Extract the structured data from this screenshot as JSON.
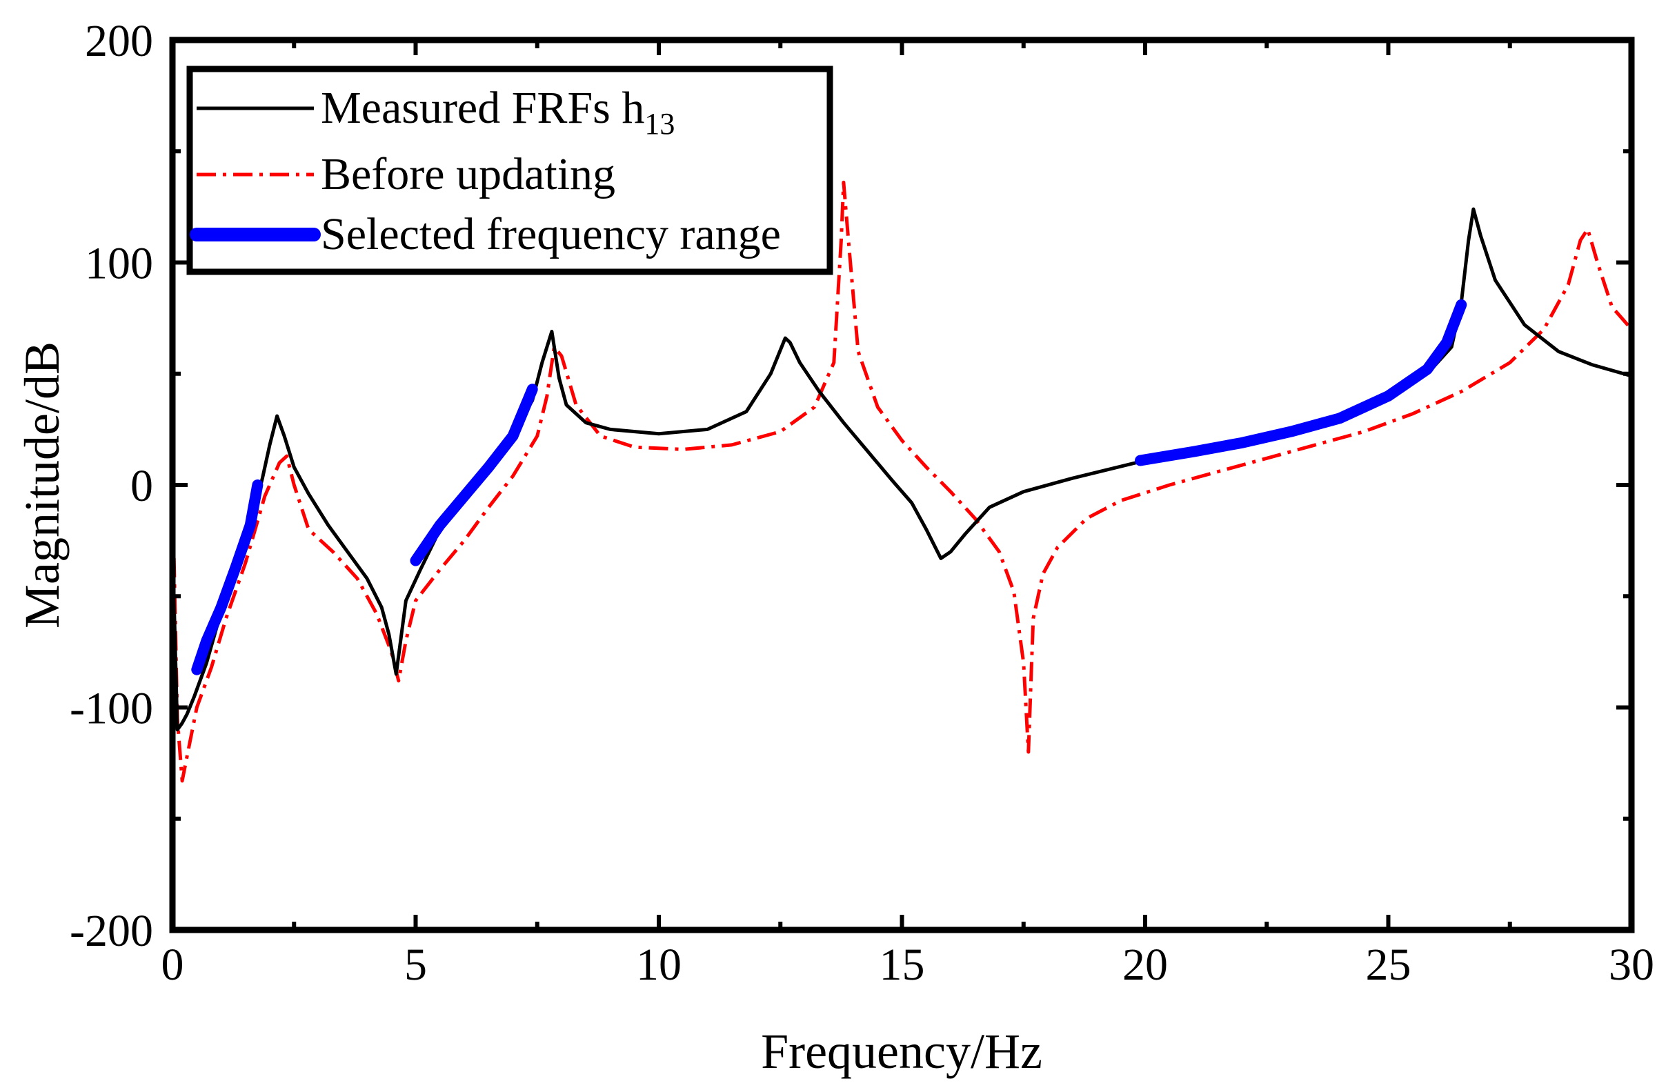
{
  "chart_data": {
    "type": "line",
    "title": "",
    "xlabel": "Frequency/Hz",
    "ylabel": "Magnitude/dB",
    "xlim": [
      0,
      30
    ],
    "ylim": [
      -200,
      200
    ],
    "xticks": [
      0,
      5,
      10,
      15,
      20,
      25,
      30
    ],
    "xtick_labels": [
      "0",
      "5",
      "10",
      "15",
      "20",
      "25",
      "30"
    ],
    "yticks": [
      -200,
      -100,
      0,
      100,
      200
    ],
    "ytick_labels": [
      "-200",
      "-100",
      "0",
      "100",
      "200"
    ],
    "grid": false,
    "legend_position": "top-left",
    "legend": {
      "measured": {
        "label": "Measured FRFs h",
        "subscript": "13"
      },
      "before": {
        "label": "Before updating"
      },
      "selected": {
        "label": "Selected frequency range"
      }
    },
    "colors": {
      "measured": "#000000",
      "before": "#ff0000",
      "selected": "#0000ff"
    },
    "series": [
      {
        "name": "Measured FRFs h13",
        "style": "solid",
        "color": "#000000",
        "x": [
          0.0,
          0.1,
          0.2,
          0.3,
          0.45,
          0.7,
          1.0,
          1.3,
          1.6,
          1.85,
          2.0,
          2.15,
          2.3,
          2.5,
          2.8,
          3.2,
          3.6,
          4.0,
          4.3,
          4.45,
          4.6,
          4.8,
          5.1,
          5.5,
          6.0,
          6.5,
          7.0,
          7.4,
          7.6,
          7.8,
          7.95,
          8.1,
          8.5,
          9.0,
          10.0,
          11.0,
          11.8,
          12.3,
          12.6,
          12.7,
          12.9,
          13.3,
          13.8,
          14.3,
          14.8,
          15.2,
          15.5,
          15.8,
          16.0,
          16.3,
          16.8,
          17.5,
          18.5,
          20.0,
          21.0,
          22.0,
          23.0,
          24.0,
          25.0,
          25.8,
          26.3,
          26.5,
          26.65,
          26.75,
          26.9,
          27.2,
          27.8,
          28.5,
          29.2,
          30.0
        ],
        "y": [
          -25,
          -110,
          -107,
          -103,
          -95,
          -80,
          -57,
          -38,
          -18,
          3,
          18,
          31,
          22,
          8,
          -4,
          -18,
          -30,
          -42,
          -55,
          -67,
          -85,
          -52,
          -38,
          -20,
          -5,
          10,
          23,
          38,
          55,
          69,
          48,
          36,
          28,
          25,
          23,
          25,
          33,
          50,
          66,
          64,
          55,
          42,
          28,
          15,
          2,
          -8,
          -20,
          -33,
          -30,
          -22,
          -10,
          -3,
          3,
          11,
          14,
          19,
          24,
          30,
          40,
          50,
          62,
          82,
          110,
          124,
          112,
          92,
          72,
          60,
          54,
          49
        ]
      },
      {
        "name": "Before updating",
        "style": "dashdot",
        "color": "#ff0000",
        "x": [
          0.0,
          0.1,
          0.2,
          0.3,
          0.5,
          0.8,
          1.1,
          1.5,
          1.9,
          2.2,
          2.35,
          2.5,
          2.8,
          3.3,
          3.8,
          4.2,
          4.5,
          4.65,
          4.8,
          5.0,
          5.5,
          6.0,
          6.5,
          7.0,
          7.5,
          7.7,
          7.85,
          8.0,
          8.3,
          8.8,
          9.5,
          10.5,
          11.5,
          12.5,
          13.2,
          13.6,
          13.75,
          13.8,
          13.9,
          14.1,
          14.5,
          15.0,
          15.5,
          16.0,
          16.5,
          17.0,
          17.3,
          17.5,
          17.6,
          17.7,
          17.9,
          18.2,
          18.8,
          19.5,
          20.5,
          21.5,
          22.5,
          23.5,
          24.5,
          25.5,
          26.5,
          27.5,
          28.2,
          28.7,
          28.95,
          29.1,
          29.3,
          29.6,
          30.0
        ],
        "y": [
          0,
          -105,
          -133,
          -122,
          -100,
          -82,
          -60,
          -35,
          -5,
          10,
          13,
          0,
          -20,
          -30,
          -42,
          -58,
          -75,
          -88,
          -70,
          -52,
          -38,
          -25,
          -10,
          4,
          22,
          40,
          62,
          58,
          36,
          22,
          17,
          16,
          18,
          24,
          35,
          55,
          110,
          136,
          110,
          60,
          35,
          20,
          8,
          -3,
          -15,
          -30,
          -48,
          -80,
          -120,
          -60,
          -40,
          -28,
          -15,
          -7,
          0,
          6,
          12,
          18,
          24,
          32,
          42,
          55,
          70,
          90,
          110,
          115,
          100,
          80,
          70
        ]
      },
      {
        "name": "Selected frequency range",
        "style": "thick-solid",
        "color": "#0000ff",
        "segments": [
          {
            "x": [
              0.5,
              0.7,
              1.0,
              1.3,
              1.6,
              1.75
            ],
            "y": [
              -83,
              -70,
              -55,
              -37,
              -18,
              0
            ]
          },
          {
            "x": [
              5.0,
              5.5,
              6.0,
              6.5,
              7.0,
              7.4
            ],
            "y": [
              -34,
              -18,
              -5,
              8,
              22,
              43
            ]
          },
          {
            "x": [
              19.9,
              21.0,
              22.0,
              23.0,
              24.0,
              25.0,
              25.8,
              26.2,
              26.5
            ],
            "y": [
              11,
              15,
              19,
              24,
              30,
              40,
              52,
              64,
              81
            ]
          }
        ]
      }
    ]
  }
}
